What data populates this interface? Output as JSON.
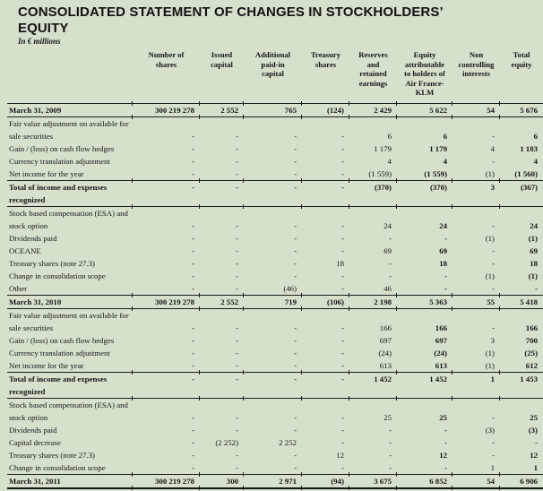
{
  "page": {
    "title_line1": "CONSOLIDATED STATEMENT OF CHANGES IN STOCKHOLDERS’",
    "title_line2": "EQUITY",
    "subtitle": "In € millions"
  },
  "colors": {
    "background": "#d5e0cd",
    "text": "#151515",
    "rule": "#1d1d1d"
  },
  "table": {
    "columns": [
      "Number of\nshares",
      "Issued\ncapital",
      "Additional\npaid-in\ncapital",
      "Treasury\nshares",
      "Reserves\nand\nretained\nearnings",
      "Equity\nattributable\nto holders of\nAir France-\nKLM",
      "Non\ncontrolling\ninterests",
      "Total\nequity"
    ],
    "rows": [
      {
        "type": "total",
        "label": "March 31, 2009",
        "cells": [
          "300 219 278",
          "2 552",
          "765",
          "(124)",
          "2 429",
          "5 622",
          "54",
          "5 676"
        ]
      },
      {
        "type": "item",
        "label": "Fair value adjustment on available for",
        "label2": "sale securities",
        "cells": [
          "-",
          "-",
          "-",
          "-",
          "6",
          "6",
          "-",
          "6"
        ]
      },
      {
        "type": "item",
        "label": "Gain / (loss) on cash flow hedges",
        "cells": [
          "-",
          "-",
          "-",
          "-",
          "1 179",
          "1 179",
          "4",
          "1 183"
        ]
      },
      {
        "type": "item",
        "label": "Currency translation adjustment",
        "cells": [
          "-",
          "-",
          "-",
          "-",
          "4",
          "4",
          "-",
          "4"
        ]
      },
      {
        "type": "item",
        "label": "Net income for the year",
        "cells": [
          "-",
          "-",
          "-",
          "-",
          "(1 559)",
          "(1 559)",
          "(1)",
          "(1 560)"
        ]
      },
      {
        "type": "total",
        "label": "Total of income and expenses",
        "label2": "recognized",
        "cells": [
          "-",
          "-",
          "-",
          "-",
          "(370)",
          "(370)",
          "3",
          "(367)"
        ]
      },
      {
        "type": "item",
        "label": "Stock based compensation (ESA) and",
        "label2": "stock option",
        "cells": [
          "-",
          "-",
          "-",
          "-",
          "24",
          "24",
          "-",
          "24"
        ]
      },
      {
        "type": "item",
        "label": "Dividends paid",
        "cells": [
          "-",
          "-",
          "-",
          "-",
          "-",
          "-",
          "(1)",
          "(1)"
        ]
      },
      {
        "type": "item",
        "label": "OCEANE",
        "cells": [
          "-",
          "-",
          "-",
          "-",
          "69",
          "69",
          "-",
          "69"
        ]
      },
      {
        "type": "item",
        "label": "Treasury shares (note 27.3)",
        "cells": [
          "-",
          "-",
          "-",
          "18",
          "-",
          "18",
          "-",
          "18"
        ]
      },
      {
        "type": "item",
        "label": "Change in consolidation scope",
        "cells": [
          "-",
          "-",
          "-",
          "-",
          "-",
          "-",
          "(1)",
          "(1)"
        ]
      },
      {
        "type": "item",
        "label": "Other",
        "cells": [
          "-",
          "-",
          "(46)",
          "-",
          "46",
          "-",
          "-",
          "-"
        ]
      },
      {
        "type": "total",
        "label": "March 31, 2010",
        "cells": [
          "300 219 278",
          "2 552",
          "719",
          "(106)",
          "2 198",
          "5 363",
          "55",
          "5 418"
        ]
      },
      {
        "type": "item",
        "label": "Fair value adjustment on available for",
        "label2": "sale securities",
        "cells": [
          "-",
          "-",
          "-",
          "-",
          "166",
          "166",
          "-",
          "166"
        ]
      },
      {
        "type": "item",
        "label": "Gain / (loss) on cash flow hedges",
        "cells": [
          "-",
          "-",
          "-",
          "-",
          "697",
          "697",
          "3",
          "700"
        ]
      },
      {
        "type": "item",
        "label": "Currency translation adjustment",
        "cells": [
          "-",
          "-",
          "-",
          "-",
          "(24)",
          "(24)",
          "(1)",
          "(25)"
        ]
      },
      {
        "type": "item",
        "label": "Net income for the year",
        "cells": [
          "-",
          "-",
          "-",
          "-",
          "613",
          "613",
          "(1)",
          "612"
        ]
      },
      {
        "type": "total",
        "label": "Total of income and expenses",
        "label2": "recognized",
        "cells": [
          "-",
          "-",
          "-",
          "-",
          "1 452",
          "1 452",
          "1",
          "1 453"
        ]
      },
      {
        "type": "item",
        "label": "Stock based compensation (ESA) and",
        "label2": "stock option",
        "cells": [
          "-",
          "-",
          "-",
          "-",
          "25",
          "25",
          "-",
          "25"
        ]
      },
      {
        "type": "item",
        "label": "Dividends paid",
        "cells": [
          "-",
          "-",
          "-",
          "-",
          "-",
          "-",
          "(3)",
          "(3)"
        ]
      },
      {
        "type": "item",
        "label": "Capital decrease",
        "cells": [
          "-",
          "(2 252)",
          "2 252",
          "-",
          "-",
          "-",
          "-",
          "-"
        ]
      },
      {
        "type": "item",
        "label": "Treasury shares (note 27.3)",
        "cells": [
          "-",
          "-",
          "-",
          "12",
          "-",
          "12",
          "-",
          "12"
        ]
      },
      {
        "type": "item",
        "label": "Change in consolidation scope",
        "cells": [
          "-",
          "-",
          "-",
          "-",
          "-",
          "-",
          "1",
          "1"
        ]
      },
      {
        "type": "total",
        "last": true,
        "label": "March 31, 2011",
        "cells": [
          "300 219 278",
          "300",
          "2 971",
          "(94)",
          "3 675",
          "6 852",
          "54",
          "6 906"
        ]
      }
    ]
  }
}
